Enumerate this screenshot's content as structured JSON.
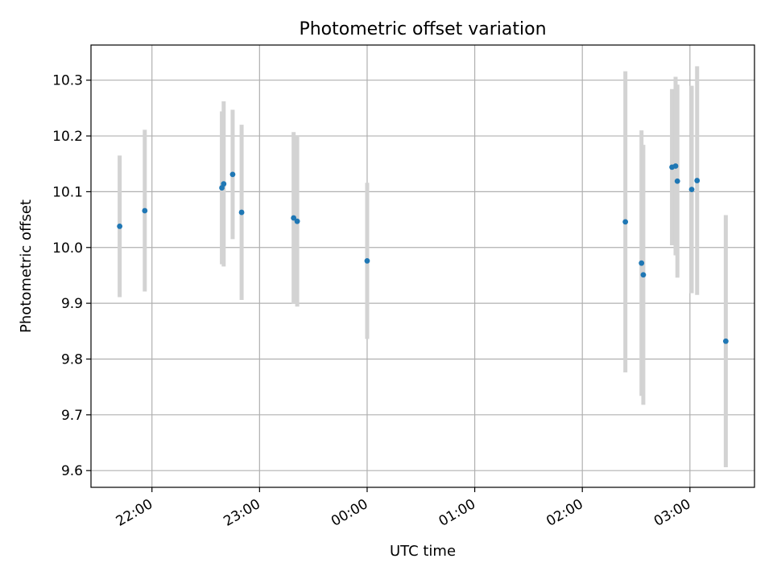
{
  "chart_data": {
    "type": "scatter",
    "title": "Photometric offset variation",
    "xlabel": "UTC time",
    "ylabel": "Photometric offset",
    "grid": true,
    "xlim": [
      "21:26",
      "03:36"
    ],
    "ylim": [
      9.57,
      10.363
    ],
    "x_ticks": [
      {
        "t": "22:00",
        "label": "22:00"
      },
      {
        "t": "23:00",
        "label": "23:00"
      },
      {
        "t": "24:00",
        "label": "00:00"
      },
      {
        "t": "25:00",
        "label": "01:00"
      },
      {
        "t": "26:00",
        "label": "02:00"
      },
      {
        "t": "27:00",
        "label": "03:00"
      }
    ],
    "y_ticks": [
      9.6,
      9.7,
      9.8,
      9.9,
      10.0,
      10.1,
      10.2,
      10.3
    ],
    "marker_color": "#1f77b4",
    "errorbar_color": "#d3d3d3",
    "points": [
      {
        "t": "21:42",
        "y": 10.038,
        "err": 0.127
      },
      {
        "t": "21:56",
        "y": 10.066,
        "err": 0.145
      },
      {
        "t": "22:39",
        "y": 10.107,
        "err": 0.137
      },
      {
        "t": "22:40",
        "y": 10.114,
        "err": 0.148
      },
      {
        "t": "22:45",
        "y": 10.131,
        "err": 0.116
      },
      {
        "t": "22:50",
        "y": 10.063,
        "err": 0.157
      },
      {
        "t": "23:19",
        "y": 10.053,
        "err": 0.154
      },
      {
        "t": "23:21",
        "y": 10.047,
        "err": 0.153
      },
      {
        "t": "00:00",
        "y": 9.976,
        "err": 0.14
      },
      {
        "t": "02:24",
        "y": 10.046,
        "err": 0.27
      },
      {
        "t": "02:33",
        "y": 9.972,
        "err": 0.238
      },
      {
        "t": "02:34",
        "y": 9.951,
        "err": 0.233
      },
      {
        "t": "02:50",
        "y": 10.144,
        "err": 0.14
      },
      {
        "t": "02:52",
        "y": 10.146,
        "err": 0.16
      },
      {
        "t": "02:53",
        "y": 10.119,
        "err": 0.173
      },
      {
        "t": "03:01",
        "y": 10.104,
        "err": 0.186
      },
      {
        "t": "03:04",
        "y": 10.12,
        "err": 0.205
      },
      {
        "t": "03:20",
        "y": 9.832,
        "err": 0.226
      }
    ]
  }
}
